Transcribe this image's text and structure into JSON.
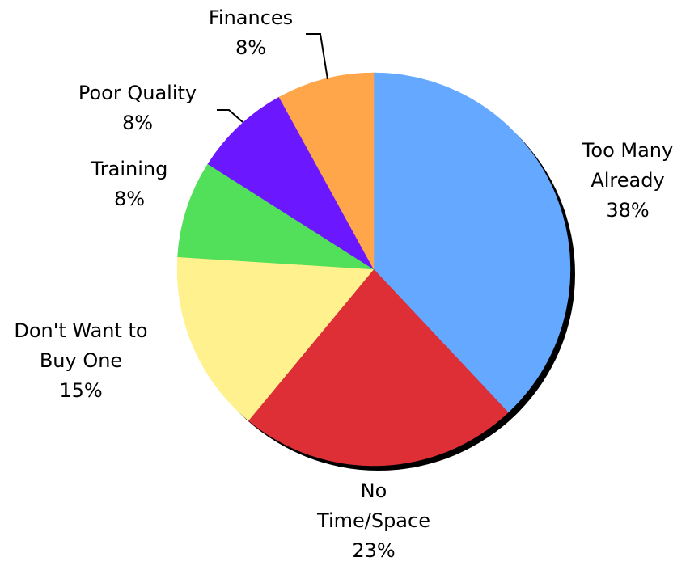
{
  "chart_data": {
    "type": "pie",
    "categories": [
      "Too Many Already",
      "No Time/Space",
      "Don't Want to Buy One",
      "Training",
      "Poor Quality",
      "Finances"
    ],
    "values": [
      38,
      23,
      15,
      8,
      8,
      8
    ],
    "value_labels": [
      "38%",
      "23%",
      "15%",
      "8%",
      "8%",
      "8%"
    ],
    "colors": [
      "#64a8ff",
      "#de2f36",
      "#fff18e",
      "#52e05a",
      "#6b17ff",
      "#ffa64a"
    ]
  }
}
